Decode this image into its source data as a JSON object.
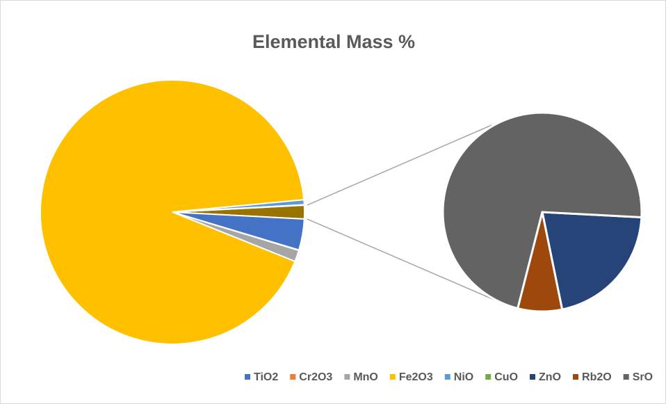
{
  "chart_data": {
    "type": "pie_of_pie",
    "title": "Elemental Mass %",
    "other_color": "#997300",
    "series": [
      {
        "name": "TiO2",
        "color": "#4472c4",
        "values": [
          3.8
        ]
      },
      {
        "name": "Cr2O3",
        "color": "#ed7d31",
        "values": [
          0.05
        ]
      },
      {
        "name": "MnO",
        "color": "#a5a5a5",
        "values": [
          1.4
        ]
      },
      {
        "name": "Fe2O3",
        "color": "#ffc000",
        "values": [
          92.43
        ]
      },
      {
        "name": "NiO",
        "color": "#5b9bd5",
        "values": [
          0.6
        ]
      },
      {
        "name": "CuO",
        "color": "#70ad47",
        "values": [
          0.05
        ]
      },
      {
        "name": "ZnO",
        "color": "#264478",
        "values": [
          0.35
        ],
        "pie": "secondary"
      },
      {
        "name": "Rb2O",
        "color": "#9e480e",
        "values": [
          0.12
        ],
        "pie": "secondary"
      },
      {
        "name": "SrO",
        "color": "#636363",
        "values": [
          1.2
        ],
        "pie": "secondary"
      }
    ],
    "legend": "bottom"
  }
}
